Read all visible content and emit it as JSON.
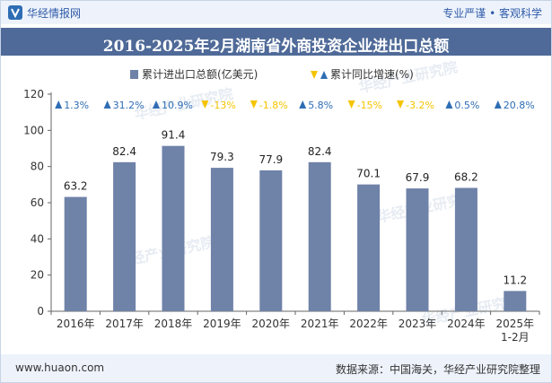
{
  "header": {
    "brand": "华经情报网",
    "tagline": "专业严谨 • 客观科学"
  },
  "title": "2016-2025年2月湖南省外商投资企业进出口总额",
  "footer": {
    "website": "www.huaon.com",
    "source": "数据来源：中国海关，华经产业研究院整理"
  },
  "watermark": "华经产业研究院",
  "colors": {
    "bar": "#6f82a8",
    "up": "#2e6db4",
    "down": "#f5c400",
    "title_bg": "#4f6a98"
  },
  "chart_data": {
    "type": "bar",
    "categories": [
      "2016年",
      "2017年",
      "2018年",
      "2019年",
      "2020年",
      "2021年",
      "2022年",
      "2023年",
      "2024年",
      "2025年\n1-2月"
    ],
    "series": [
      {
        "name": "累计进出口总额(亿美元)",
        "values": [
          63.2,
          82.4,
          91.4,
          79.3,
          77.9,
          82.4,
          70.1,
          67.9,
          68.2,
          11.2
        ]
      }
    ],
    "growth": {
      "name": "累计同比增速(%)",
      "values": [
        1.3,
        31.2,
        10.9,
        -13,
        -1.8,
        5.8,
        -15,
        -3.2,
        0.5,
        20.8
      ],
      "labels": [
        "1.3%",
        "31.2%",
        "10.9%",
        "-13%",
        "-1.8%",
        "5.8%",
        "-15%",
        "-3.2%",
        "0.5%",
        "20.8%"
      ]
    },
    "ylim": [
      0,
      120
    ],
    "yticks": [
      0,
      20,
      40,
      60,
      80,
      100,
      120
    ],
    "legend_position": "top-center",
    "grid": false
  }
}
